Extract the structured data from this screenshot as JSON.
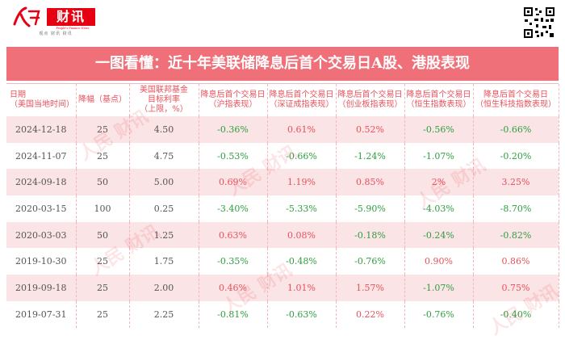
{
  "logo": {
    "brand_box": "财讯",
    "subtitle": "People's Finance News",
    "tabs": "观点    财讯    财讯"
  },
  "title": "一图看懂：近十年美联储降息后首个交易日A股、港股表现",
  "columns": [
    [
      "日期",
      "（美国当地时间）"
    ],
    [
      "降幅（基点）"
    ],
    [
      "美国联邦基金",
      "目标利率",
      "（上限，%）"
    ],
    [
      "降息后首个交易日",
      "（沪指表现）"
    ],
    [
      "降息后首个交易日",
      "（深证成指表现）"
    ],
    [
      "降息后首个交易日",
      "（创业板指表现）"
    ],
    [
      "降息后首个交易日",
      "（恒生指数表现）"
    ],
    [
      "降息后首个交易日",
      "（恒生科技指数表现）"
    ]
  ],
  "rows": [
    [
      "2024-12-18",
      "25",
      "4.50",
      "-0.36%",
      "0.61%",
      "0.52%",
      "-0.56%",
      "-0.66%"
    ],
    [
      "2024-11-07",
      "25",
      "4.75",
      "-0.53%",
      "-0.66%",
      "-1.24%",
      "-1.07%",
      "-0.20%"
    ],
    [
      "2024-09-18",
      "50",
      "5.00",
      "0.69%",
      "1.19%",
      "0.85%",
      "2%",
      "3.25%"
    ],
    [
      "2020-03-15",
      "100",
      "0.25",
      "-3.40%",
      "-5.33%",
      "-5.90%",
      "-4.03%",
      "-8.70%"
    ],
    [
      "2020-03-03",
      "50",
      "1.25",
      "0.63%",
      "0.08%",
      "-0.18%",
      "-0.24%",
      "-0.82%"
    ],
    [
      "2019-10-30",
      "25",
      "1.75",
      "-0.35%",
      "-0.48%",
      "-0.76%",
      "0.90%",
      "0.86%"
    ],
    [
      "2019-09-18",
      "25",
      "2.00",
      "0.46%",
      "1.01%",
      "1.57%",
      "-1.07%",
      "0.75%"
    ],
    [
      "2019-07-31",
      "25",
      "2.25",
      "-0.81%",
      "-0.63%",
      "0.22%",
      "-0.76%",
      "-0.40%"
    ]
  ],
  "colors": {
    "accent": "#e60012",
    "title_bg": "#f0707a",
    "header_text": "#e8505b",
    "negative": "#2e9e3e",
    "positive": "#e8505b",
    "row_stripe": "#fbe4e5"
  },
  "icons": {
    "logo": "people-daily-logo-icon",
    "qr": "qr-code-icon"
  }
}
